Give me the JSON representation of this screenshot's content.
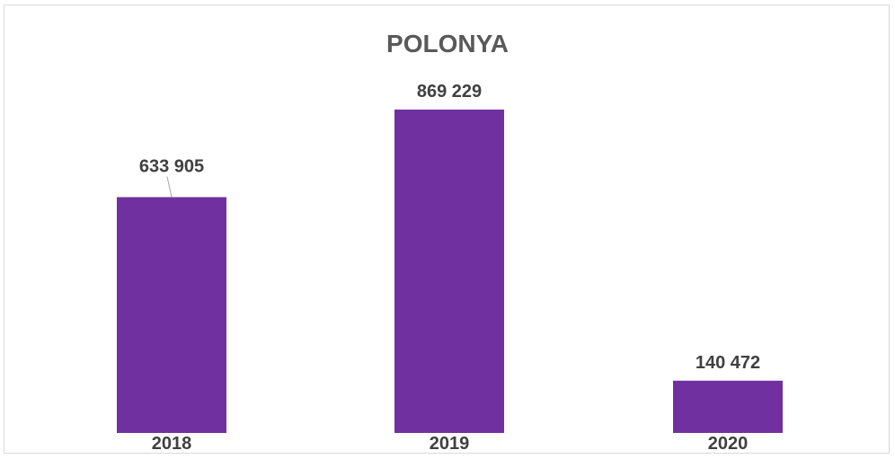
{
  "chart_data": {
    "type": "bar",
    "title": "POLONYA",
    "categories": [
      "2018",
      "2019",
      "2020"
    ],
    "values": [
      633905,
      869229,
      140472
    ],
    "data_labels": [
      "633 905",
      "869 229",
      "140 472"
    ],
    "xlabel": "",
    "ylabel": "",
    "ylim": [
      0,
      1000000
    ],
    "grid": false,
    "legend": "none",
    "bar_color": "#7030a0"
  }
}
